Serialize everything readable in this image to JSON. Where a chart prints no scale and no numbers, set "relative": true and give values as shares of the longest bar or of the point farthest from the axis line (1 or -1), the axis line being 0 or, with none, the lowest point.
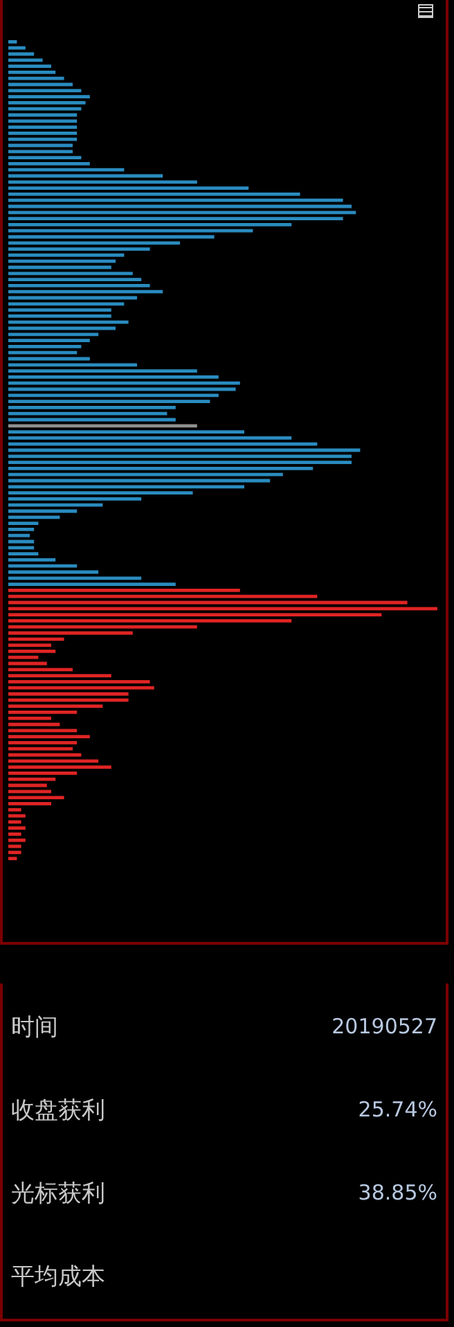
{
  "chart_data": [
    {
      "type": "bar",
      "orientation": "horizontal",
      "relative": true,
      "legend": false,
      "categories": [
        null,
        null,
        null,
        null,
        null,
        null,
        null,
        null,
        null,
        null,
        null,
        null,
        null,
        null,
        null,
        null,
        null,
        null,
        null,
        null,
        null,
        null,
        null,
        null,
        null,
        null,
        null,
        null,
        null,
        null,
        null,
        null,
        null,
        null,
        null,
        null,
        null,
        null,
        null,
        null,
        null,
        null,
        null,
        null,
        null,
        null,
        null,
        null,
        null,
        null,
        null,
        null,
        null,
        null,
        null,
        null,
        null,
        null,
        null,
        null,
        null,
        null,
        null,
        null,
        null,
        null,
        null,
        null,
        null,
        null,
        null,
        null,
        null,
        null,
        null,
        null,
        null,
        null,
        null,
        null,
        null,
        null,
        null,
        null,
        null,
        null,
        null,
        null,
        null,
        null,
        null,
        null,
        null,
        null,
        null,
        null,
        null,
        null,
        null,
        null,
        null,
        null,
        null,
        null,
        null,
        null,
        null,
        null,
        null,
        null,
        null,
        null,
        null,
        null,
        null,
        null,
        null,
        null,
        null,
        null,
        null,
        null,
        null,
        null,
        null,
        null,
        null,
        null,
        null,
        null,
        null,
        null,
        null,
        null,
        null
      ],
      "values": [
        0.02,
        0.04,
        0.06,
        0.08,
        0.1,
        0.11,
        0.13,
        0.15,
        0.17,
        0.19,
        0.18,
        0.17,
        0.16,
        0.16,
        0.16,
        0.16,
        0.16,
        0.15,
        0.15,
        0.17,
        0.19,
        0.27,
        0.36,
        0.44,
        0.56,
        0.68,
        0.78,
        0.8,
        0.81,
        0.78,
        0.66,
        0.57,
        0.48,
        0.4,
        0.33,
        0.27,
        0.25,
        0.24,
        0.29,
        0.31,
        0.33,
        0.36,
        0.3,
        0.27,
        0.24,
        0.24,
        0.28,
        0.25,
        0.21,
        0.19,
        0.17,
        0.16,
        0.19,
        0.3,
        0.44,
        0.49,
        0.54,
        0.53,
        0.49,
        0.47,
        0.39,
        0.37,
        0.39,
        0.44,
        0.55,
        0.66,
        0.72,
        0.82,
        0.8,
        0.8,
        0.71,
        0.64,
        0.61,
        0.55,
        0.43,
        0.31,
        0.22,
        0.16,
        0.12,
        0.07,
        0.06,
        0.05,
        0.06,
        0.06,
        0.07,
        0.11,
        0.16,
        0.21,
        0.31,
        0.39,
        0.54,
        0.72,
        0.93,
        1,
        0.87,
        0.66,
        0.44,
        0.29,
        0.13,
        0.1,
        0.11,
        0.07,
        0.09,
        0.15,
        0.24,
        0.33,
        0.34,
        0.28,
        0.28,
        0.22,
        0.16,
        0.1,
        0.12,
        0.16,
        0.19,
        0.16,
        0.15,
        0.17,
        0.21,
        0.24,
        0.16,
        0.11,
        0.09,
        0.1,
        0.13,
        0.1,
        0.03,
        0.04,
        0.03,
        0.04,
        0.03,
        0.04,
        0.03,
        0.03,
        0.02
      ],
      "colors": [
        "#2a8cc0",
        "#2a8cc0",
        "#2a8cc0",
        "#2a8cc0",
        "#2a8cc0",
        "#2a8cc0",
        "#2a8cc0",
        "#2a8cc0",
        "#2a8cc0",
        "#2a8cc0",
        "#2a8cc0",
        "#2a8cc0",
        "#2a8cc0",
        "#2a8cc0",
        "#2a8cc0",
        "#2a8cc0",
        "#2a8cc0",
        "#2a8cc0",
        "#2a8cc0",
        "#2a8cc0",
        "#2a8cc0",
        "#2a8cc0",
        "#2a8cc0",
        "#2a8cc0",
        "#2a8cc0",
        "#2a8cc0",
        "#2a8cc0",
        "#2a8cc0",
        "#2a8cc0",
        "#2a8cc0",
        "#2a8cc0",
        "#2a8cc0",
        "#2a8cc0",
        "#2a8cc0",
        "#2a8cc0",
        "#2a8cc0",
        "#2a8cc0",
        "#2a8cc0",
        "#2a8cc0",
        "#2a8cc0",
        "#2a8cc0",
        "#2a8cc0",
        "#2a8cc0",
        "#2a8cc0",
        "#2a8cc0",
        "#2a8cc0",
        "#2a8cc0",
        "#2a8cc0",
        "#2a8cc0",
        "#2a8cc0",
        "#2a8cc0",
        "#2a8cc0",
        "#2a8cc0",
        "#2a8cc0",
        "#2a8cc0",
        "#2a8cc0",
        "#2a8cc0",
        "#2a8cc0",
        "#2a8cc0",
        "#2a8cc0",
        "#2a8cc0",
        "#2a8cc0",
        "#2a8cc0",
        "#909090",
        "#2a8cc0",
        "#2a8cc0",
        "#2a8cc0",
        "#2a8cc0",
        "#2a8cc0",
        "#2a8cc0",
        "#2a8cc0",
        "#2a8cc0",
        "#2a8cc0",
        "#2a8cc0",
        "#2a8cc0",
        "#2a8cc0",
        "#2a8cc0",
        "#2a8cc0",
        "#2a8cc0",
        "#2a8cc0",
        "#2a8cc0",
        "#2a8cc0",
        "#2a8cc0",
        "#2a8cc0",
        "#2a8cc0",
        "#2a8cc0",
        "#2a8cc0",
        "#2a8cc0",
        "#2a8cc0",
        "#2a8cc0",
        "#e02424",
        "#e02424",
        "#e02424",
        "#e02424",
        "#e02424",
        "#e02424",
        "#e02424",
        "#e02424",
        "#e02424",
        "#e02424",
        "#e02424",
        "#e02424",
        "#e02424",
        "#e02424",
        "#e02424",
        "#e02424",
        "#e02424",
        "#e02424",
        "#e02424",
        "#e02424",
        "#e02424",
        "#e02424",
        "#e02424",
        "#e02424",
        "#e02424",
        "#e02424",
        "#e02424",
        "#e02424",
        "#e02424",
        "#e02424",
        "#e02424",
        "#e02424",
        "#e02424",
        "#e02424",
        "#e02424",
        "#e02424",
        "#e02424",
        "#e02424",
        "#e02424",
        "#e02424",
        "#e02424",
        "#e02424",
        "#e02424",
        "#e02424",
        "#e02424"
      ]
    },
    {
      "type": "other",
      "annotations": [
        "时间",
        "20190527",
        "收盘获利",
        "25.74%",
        "光标获利",
        "38.85%",
        "平均成本"
      ]
    }
  ]
}
